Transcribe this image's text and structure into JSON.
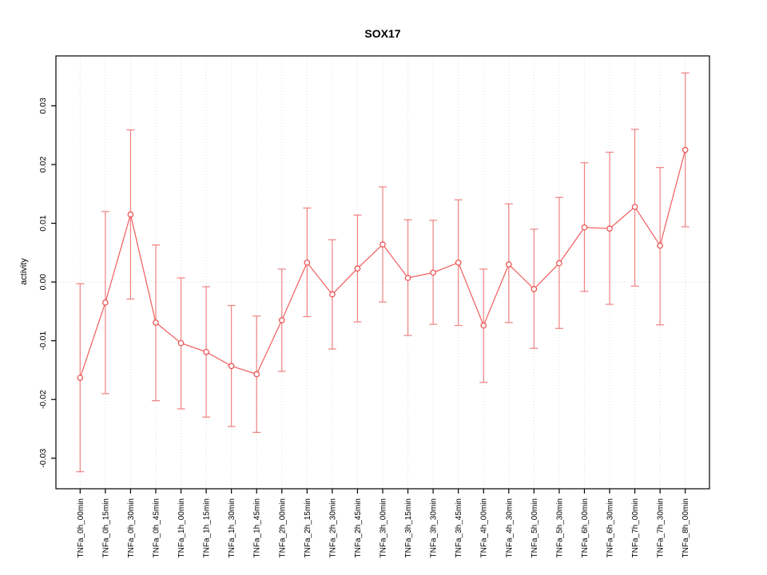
{
  "chart_data": {
    "type": "line",
    "title": "SOX17",
    "xlabel": "",
    "ylabel": "activity",
    "grid": true,
    "legend": "none",
    "categories": [
      "TNFa_0h_00min",
      "TNFa_0h_15min",
      "TNFa_0h_30min",
      "TNFa_0h_45min",
      "TNFa_1h_00min",
      "TNFa_1h_15min",
      "TNFa_1h_30min",
      "TNFa_1h_45min",
      "TNFa_2h_00min",
      "TNFa_2h_15min",
      "TNFa_2h_30min",
      "TNFa_2h_45min",
      "TNFa_3h_00min",
      "TNFa_3h_15min",
      "TNFa_3h_30min",
      "TNFa_3h_45min",
      "TNFa_4h_00min",
      "TNFa_4h_30min",
      "TNFa_5h_00min",
      "TNFa_5h_30min",
      "TNFa_6h_00min",
      "TNFa_6h_30min",
      "TNFa_7h_00min",
      "TNFa_7h_30min",
      "TNFa_8h_00min"
    ],
    "series": [
      {
        "name": "activity",
        "values": [
          -0.0163,
          -0.0035,
          0.0115,
          -0.0069,
          -0.0104,
          -0.0119,
          -0.0143,
          -0.0157,
          -0.0065,
          0.0033,
          -0.0021,
          0.0023,
          0.0064,
          0.0007,
          0.0016,
          0.0033,
          -0.0074,
          0.003,
          -0.0012,
          0.0032,
          0.0093,
          0.0091,
          0.0128,
          0.0062,
          0.0225
        ],
        "error_low": [
          -0.0323,
          -0.019,
          -0.0029,
          -0.0202,
          -0.0216,
          -0.023,
          -0.0246,
          -0.0256,
          -0.0152,
          -0.0059,
          -0.0114,
          -0.0068,
          -0.0034,
          -0.0091,
          -0.0072,
          -0.0074,
          -0.0171,
          -0.0069,
          -0.0113,
          -0.0079,
          -0.0016,
          -0.0038,
          -0.0007,
          -0.0073,
          0.0094
        ],
        "error_high": [
          -0.0003,
          0.012,
          0.0259,
          0.0063,
          0.0007,
          -0.0008,
          -0.004,
          -0.0058,
          0.0022,
          0.0126,
          0.0072,
          0.0114,
          0.0162,
          0.0106,
          0.0105,
          0.014,
          0.0022,
          0.0133,
          0.009,
          0.0144,
          0.0203,
          0.0221,
          0.026,
          0.0195,
          0.0356
        ]
      }
    ],
    "yticks": [
      -0.03,
      -0.02,
      -0.01,
      0.0,
      0.01,
      0.02,
      0.03
    ],
    "ylim": [
      -0.0352,
      0.0385
    ],
    "colors": {
      "line": "#f25c5c",
      "point_stroke": "#e84b4b",
      "point_fill": "#ffffff",
      "error_bar": "#f08080",
      "grid": "#dcdcdc",
      "zero_line": "#d8d8d8",
      "axis": "#000000",
      "background": "#ffffff"
    }
  }
}
